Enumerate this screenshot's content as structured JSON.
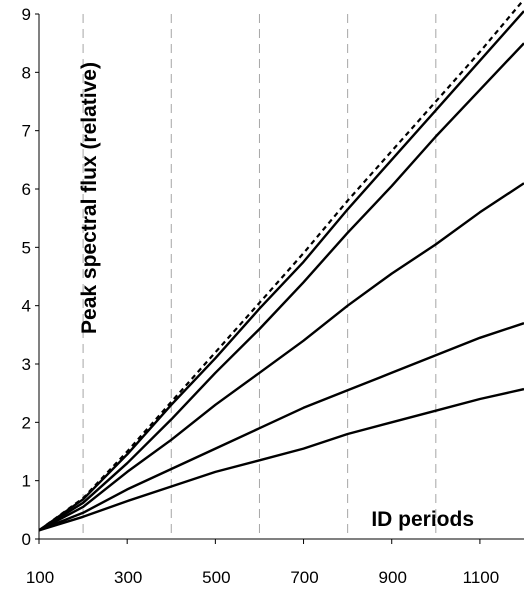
{
  "chart_data": {
    "type": "line",
    "title": "",
    "xlabel": "ID periods",
    "ylabel": "Peak spectral flux (relative)",
    "xlim": [
      100,
      1200
    ],
    "ylim": [
      0,
      9
    ],
    "x_ticks": [
      100,
      300,
      500,
      700,
      900,
      1100
    ],
    "y_ticks": [
      0,
      1,
      2,
      3,
      4,
      5,
      6,
      7,
      8,
      9
    ],
    "grid": "vertical dashed at 200, 400, 600, 800, 1000",
    "legend": "none",
    "series": [
      {
        "style": "dotted",
        "x": [
          100,
          200,
          300,
          400,
          500,
          600,
          700,
          800,
          900,
          1000,
          1100,
          1200
        ],
        "y": [
          0.15,
          0.7,
          1.5,
          2.35,
          3.2,
          4.05,
          4.9,
          5.8,
          6.65,
          7.5,
          8.35,
          9.25
        ]
      },
      {
        "style": "solid",
        "x": [
          100,
          200,
          300,
          400,
          500,
          600,
          700,
          800,
          900,
          1000,
          1100,
          1200
        ],
        "y": [
          0.15,
          0.68,
          1.45,
          2.3,
          3.1,
          3.95,
          4.75,
          5.65,
          6.5,
          7.35,
          8.2,
          9.05
        ]
      },
      {
        "style": "solid",
        "x": [
          100,
          200,
          300,
          400,
          500,
          600,
          700,
          800,
          900,
          1000,
          1100,
          1200
        ],
        "y": [
          0.15,
          0.62,
          1.3,
          2.05,
          2.85,
          3.6,
          4.4,
          5.25,
          6.05,
          6.9,
          7.7,
          8.5
        ]
      },
      {
        "style": "solid",
        "x": [
          100,
          200,
          300,
          400,
          500,
          600,
          700,
          800,
          900,
          1000,
          1100,
          1200
        ],
        "y": [
          0.15,
          0.55,
          1.15,
          1.7,
          2.3,
          2.85,
          3.4,
          4.0,
          4.55,
          5.05,
          5.6,
          6.1
        ]
      },
      {
        "style": "solid",
        "x": [
          100,
          200,
          300,
          400,
          500,
          600,
          700,
          800,
          900,
          1000,
          1100,
          1200
        ],
        "y": [
          0.15,
          0.45,
          0.85,
          1.2,
          1.55,
          1.9,
          2.25,
          2.55,
          2.85,
          3.15,
          3.45,
          3.7
        ]
      },
      {
        "style": "solid",
        "x": [
          100,
          200,
          300,
          400,
          500,
          600,
          700,
          800,
          900,
          1000,
          1100,
          1200
        ],
        "y": [
          0.15,
          0.38,
          0.65,
          0.9,
          1.15,
          1.35,
          1.55,
          1.8,
          2.0,
          2.2,
          2.4,
          2.57
        ]
      }
    ]
  }
}
